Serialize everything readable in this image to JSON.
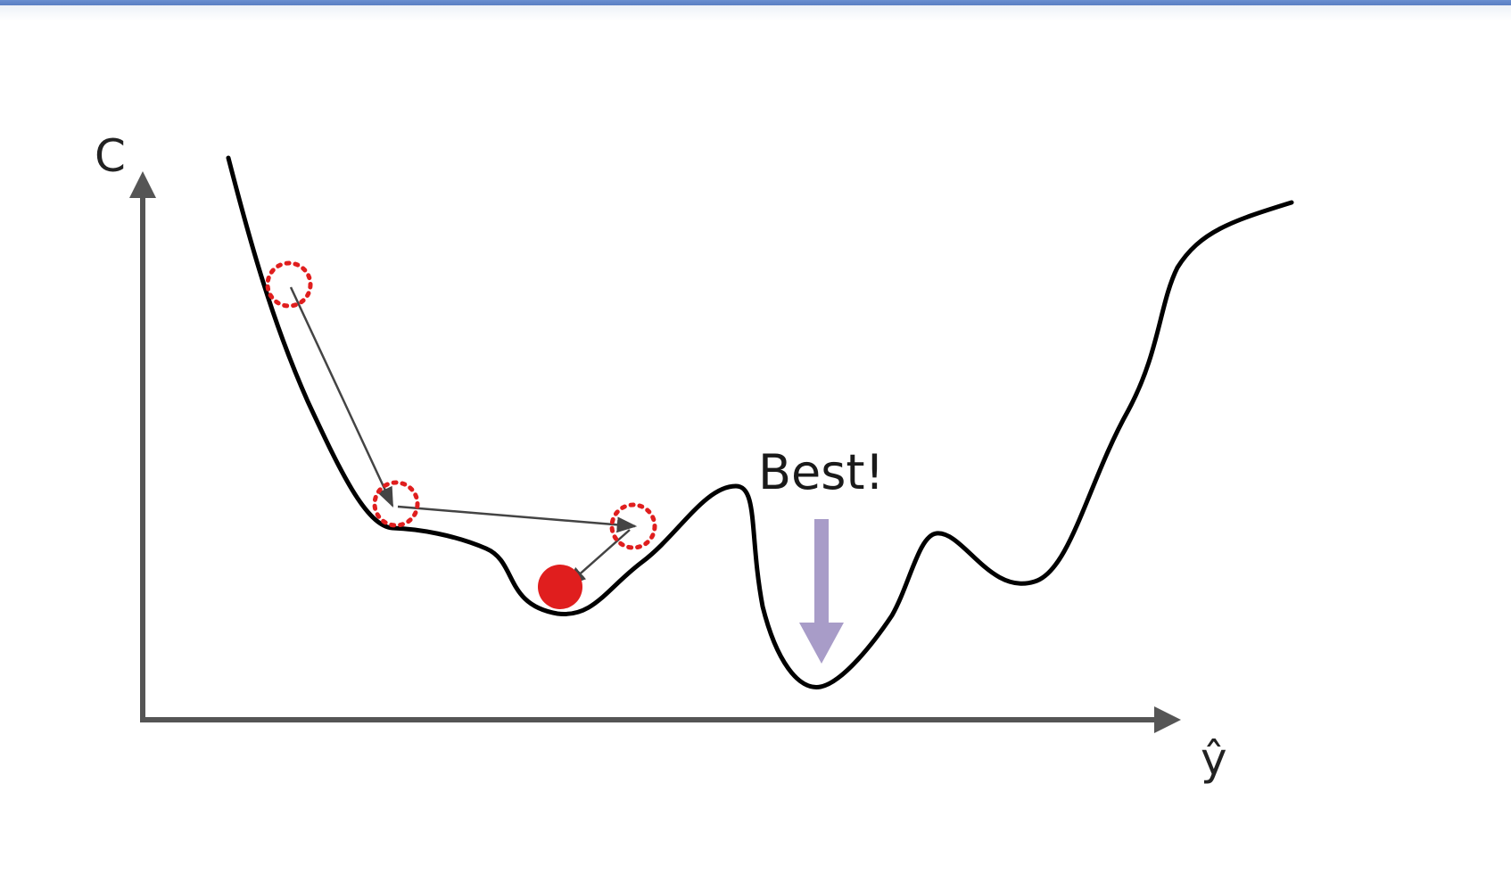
{
  "axes": {
    "y_label": "C",
    "x_label": "ŷ"
  },
  "annotation": {
    "text": "Best!"
  },
  "colors": {
    "axis": "#555555",
    "curve": "#000000",
    "marker": "#e01e1e",
    "step_arrow": "#444444",
    "best_arrow": "#a89cc8"
  }
}
